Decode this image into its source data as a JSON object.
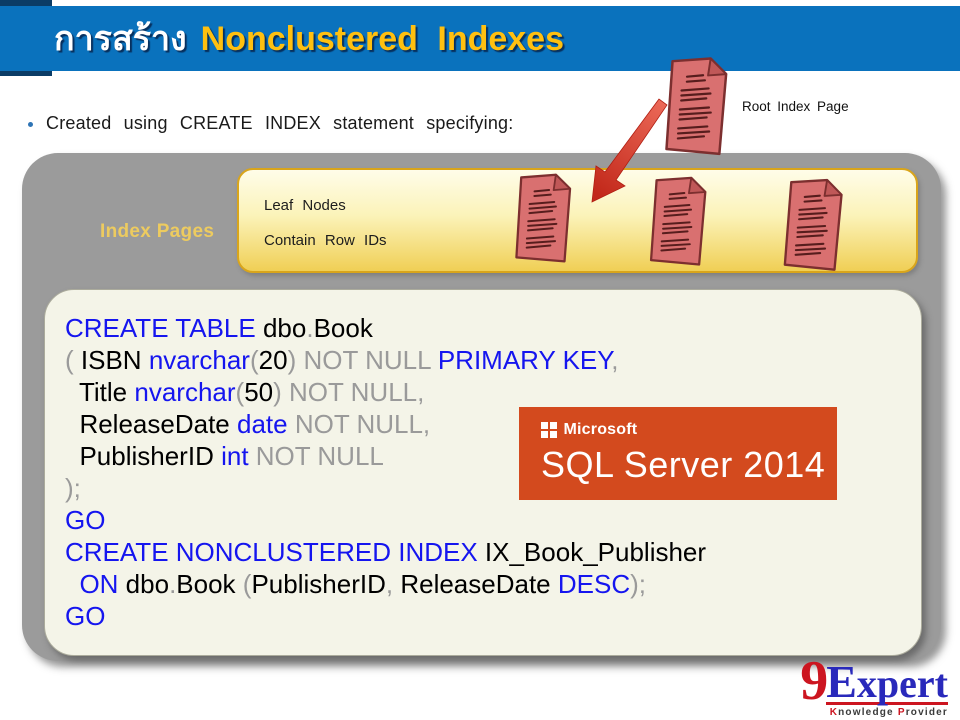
{
  "header": {
    "title_thai": "การสร้าง",
    "title_en": "Nonclustered Indexes"
  },
  "bullet_text": "Created using CREATE INDEX statement specifying:",
  "diagram": {
    "root_label": "Root Index Page",
    "index_pages_label": "Index Pages",
    "leaf_title": "Leaf Nodes",
    "leaf_subtitle": "Contain Row IDs"
  },
  "sql_logo": {
    "brand": "Microsoft",
    "product": "SQL Server 2014"
  },
  "footer": {
    "logo_9": "9",
    "logo_expert": "Expert",
    "tagline": [
      "Knowledge",
      "Provider"
    ]
  },
  "colors": {
    "header_blue": "#0A72BD",
    "navy": "#0B3C66",
    "title_yellow": "#FFC010",
    "gold_label": "#EDCB5F",
    "box_gray": "#9B9B9B",
    "leaf_top": "#FFFDE9",
    "leaf_bottom": "#F0CF55",
    "cream": "#F4F4E8",
    "kw_blue": "#1515EF",
    "muted_gray": "#9A9A9A",
    "logo_orange": "#D34A1E",
    "doc_red": "#D97070",
    "arrow_red": "#D6301F",
    "brand_red": "#CC1520",
    "brand_blue": "#2929BB"
  },
  "code": {
    "lines": [
      [
        {
          "t": "CREATE TABLE",
          "c": "kw"
        },
        {
          "t": " dbo",
          "c": "id"
        },
        {
          "t": ".",
          "c": "pn"
        },
        {
          "t": "Book",
          "c": "id"
        }
      ],
      [
        {
          "t": "( ",
          "c": "pn"
        },
        {
          "t": "ISBN ",
          "c": "id"
        },
        {
          "t": "nvarchar",
          "c": "kw"
        },
        {
          "t": "(",
          "c": "pn"
        },
        {
          "t": "20",
          "c": "id"
        },
        {
          "t": ") ",
          "c": "pn"
        },
        {
          "t": "NOT NULL ",
          "c": "pn"
        },
        {
          "t": "PRIMARY KEY",
          "c": "kw"
        },
        {
          "t": ",",
          "c": "pn"
        }
      ],
      [
        {
          "t": "  Title ",
          "c": "id"
        },
        {
          "t": "nvarchar",
          "c": "kw"
        },
        {
          "t": "(",
          "c": "pn"
        },
        {
          "t": "50",
          "c": "id"
        },
        {
          "t": ") ",
          "c": "pn"
        },
        {
          "t": "NOT NULL,",
          "c": "pn"
        }
      ],
      [
        {
          "t": "  ReleaseDate ",
          "c": "id"
        },
        {
          "t": "date ",
          "c": "kw"
        },
        {
          "t": "NOT NULL,",
          "c": "pn"
        }
      ],
      [
        {
          "t": "  PublisherID ",
          "c": "id"
        },
        {
          "t": "int ",
          "c": "kw"
        },
        {
          "t": "NOT NULL",
          "c": "pn"
        }
      ],
      [
        {
          "t": ");",
          "c": "pn"
        }
      ],
      [
        {
          "t": "GO",
          "c": "kw"
        }
      ],
      [
        {
          "t": "CREATE NONCLUSTERED INDEX",
          "c": "kw"
        },
        {
          "t": " IX_Book_Publisher",
          "c": "id"
        }
      ],
      [
        {
          "t": "  ON",
          "c": "kw"
        },
        {
          "t": " dbo",
          "c": "id"
        },
        {
          "t": ".",
          "c": "pn"
        },
        {
          "t": "Book ",
          "c": "id"
        },
        {
          "t": "(",
          "c": "pn"
        },
        {
          "t": "PublisherID",
          "c": "id"
        },
        {
          "t": ", ",
          "c": "pn"
        },
        {
          "t": "ReleaseDate ",
          "c": "id"
        },
        {
          "t": "DESC",
          "c": "kw"
        },
        {
          "t": ");",
          "c": "pn"
        }
      ],
      [
        {
          "t": "GO",
          "c": "kw"
        }
      ]
    ]
  }
}
